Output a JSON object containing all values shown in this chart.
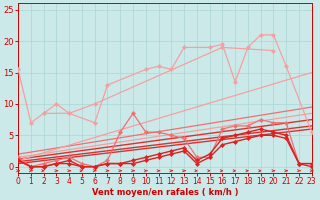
{
  "xlabel": "Vent moyen/en rafales ( km/h )",
  "xlim": [
    0,
    23
  ],
  "ylim": [
    -1,
    26
  ],
  "xticks": [
    0,
    1,
    2,
    3,
    4,
    5,
    6,
    7,
    8,
    9,
    10,
    11,
    12,
    13,
    14,
    15,
    16,
    17,
    18,
    19,
    20,
    21,
    22,
    23
  ],
  "yticks": [
    0,
    5,
    10,
    15,
    20,
    25
  ],
  "bg_color": "#cce9e9",
  "grid_color": "#aad4d4",
  "series": [
    {
      "x": [
        0,
        1,
        2,
        4,
        6,
        7,
        10,
        11,
        12,
        13,
        15,
        16,
        17,
        18,
        19,
        20,
        21,
        23
      ],
      "y": [
        15.5,
        7.0,
        8.5,
        8.5,
        7.0,
        13.0,
        15.5,
        16.0,
        15.5,
        19.0,
        19.0,
        19.5,
        13.5,
        19.0,
        21.0,
        21.0,
        16.0,
        5.5
      ],
      "color": "#f4a0a0",
      "lw": 0.9,
      "marker": "D",
      "ms": 2.2,
      "zorder": 3
    },
    {
      "x": [
        2,
        3,
        4,
        6,
        16,
        20
      ],
      "y": [
        8.5,
        10.0,
        8.5,
        10.0,
        19.0,
        18.5
      ],
      "color": "#f4a0a0",
      "lw": 0.9,
      "marker": "D",
      "ms": 2.2,
      "zorder": 3
    },
    {
      "x": [
        0,
        1,
        2,
        3,
        4,
        5,
        6,
        7,
        8,
        9,
        10,
        11,
        12,
        13,
        14,
        15,
        16,
        17,
        18,
        19,
        20,
        21,
        22,
        23
      ],
      "y": [
        1.5,
        0.0,
        0.5,
        1.0,
        1.5,
        0.5,
        0.0,
        1.0,
        5.5,
        8.5,
        5.5,
        5.5,
        5.0,
        4.5,
        1.5,
        1.5,
        6.0,
        6.5,
        6.5,
        7.5,
        7.0,
        7.0,
        0.5,
        0.5
      ],
      "color": "#f07070",
      "lw": 0.9,
      "marker": "D",
      "ms": 2.2,
      "zorder": 3
    },
    {
      "x": [
        0,
        1,
        2,
        3,
        4,
        5,
        6,
        7,
        8,
        9,
        10,
        11,
        12,
        13,
        14,
        15,
        16,
        17,
        18,
        19,
        20,
        21,
        22,
        23
      ],
      "y": [
        1.0,
        0.0,
        0.0,
        0.5,
        1.0,
        0.0,
        0.0,
        0.5,
        0.5,
        1.0,
        1.5,
        2.0,
        2.5,
        3.0,
        1.0,
        2.0,
        4.5,
        5.0,
        5.5,
        6.0,
        5.5,
        5.0,
        0.5,
        0.5
      ],
      "color": "#dd2020",
      "lw": 1.0,
      "marker": "D",
      "ms": 2.2,
      "zorder": 4
    },
    {
      "x": [
        0,
        1,
        2,
        3,
        4,
        5,
        6,
        7,
        8,
        9,
        10,
        11,
        12,
        13,
        14,
        15,
        16,
        17,
        18,
        19,
        20,
        21,
        22,
        23
      ],
      "y": [
        1.0,
        0.0,
        0.0,
        0.5,
        0.5,
        0.0,
        0.0,
        0.5,
        0.5,
        0.5,
        1.0,
        1.5,
        2.0,
        2.5,
        0.5,
        1.5,
        3.5,
        4.0,
        4.5,
        5.0,
        5.0,
        4.5,
        0.5,
        0.0
      ],
      "color": "#dd2020",
      "lw": 1.0,
      "marker": "D",
      "ms": 2.2,
      "zorder": 4
    },
    {
      "x": [
        0,
        23
      ],
      "y": [
        1.2,
        7.5
      ],
      "color": "#dd3030",
      "lw": 1.0,
      "marker": null,
      "ms": 0,
      "zorder": 2
    },
    {
      "x": [
        0,
        23
      ],
      "y": [
        0.8,
        6.5
      ],
      "color": "#dd3030",
      "lw": 1.0,
      "marker": null,
      "ms": 0,
      "zorder": 2
    },
    {
      "x": [
        0,
        23
      ],
      "y": [
        0.5,
        6.0
      ],
      "color": "#dd3030",
      "lw": 1.0,
      "marker": null,
      "ms": 0,
      "zorder": 2
    },
    {
      "x": [
        0,
        23
      ],
      "y": [
        2.0,
        9.5
      ],
      "color": "#f07070",
      "lw": 0.9,
      "marker": null,
      "ms": 0,
      "zorder": 2
    },
    {
      "x": [
        0,
        23
      ],
      "y": [
        1.5,
        8.5
      ],
      "color": "#f4a0a0",
      "lw": 0.9,
      "marker": null,
      "ms": 0,
      "zorder": 2
    },
    {
      "x": [
        0,
        23
      ],
      "y": [
        1.0,
        15.0
      ],
      "color": "#f4a0a0",
      "lw": 0.9,
      "marker": null,
      "ms": 0,
      "zorder": 2
    }
  ],
  "arrow_color": "#dd2020",
  "arrow_angles": [
    0,
    0,
    45,
    0,
    0,
    45,
    0,
    0,
    0,
    0,
    0,
    0,
    0,
    0,
    315,
    315,
    315,
    315,
    315,
    315,
    0,
    0,
    0,
    0
  ]
}
